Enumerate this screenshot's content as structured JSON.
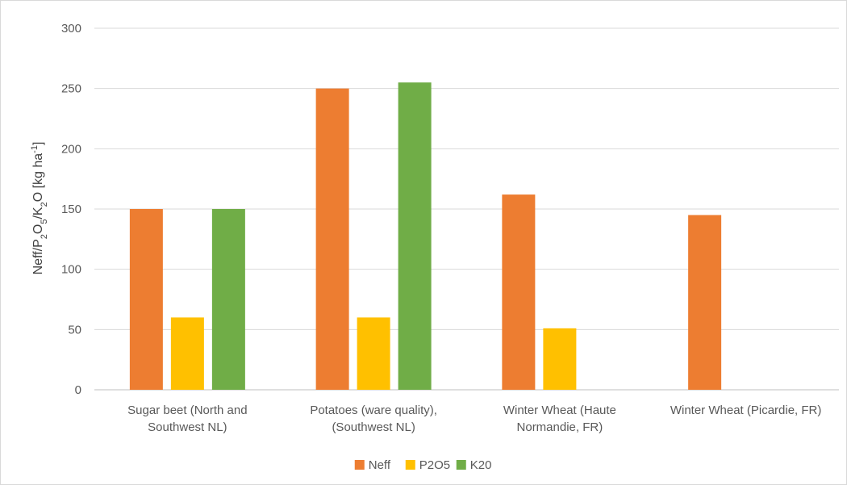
{
  "chart_data": {
    "type": "bar",
    "ylabel": {
      "parts": [
        {
          "text": "Neff/P",
          "shift": "normal"
        },
        {
          "text": "2",
          "shift": "sub"
        },
        {
          "text": "O",
          "shift": "normal"
        },
        {
          "text": "5",
          "shift": "sub"
        },
        {
          "text": "/K",
          "shift": "normal"
        },
        {
          "text": "2",
          "shift": "sub"
        },
        {
          "text": "O [kg ha",
          "shift": "normal"
        },
        {
          "text": "-1",
          "shift": "super"
        },
        {
          "text": "]",
          "shift": "normal"
        }
      ]
    },
    "ylim": [
      0,
      300
    ],
    "yticks": [
      0,
      50,
      100,
      150,
      200,
      250,
      300
    ],
    "grid": true,
    "legend_position": "bottom",
    "categories": [
      [
        "Sugar beet (North and",
        "Southwest NL)"
      ],
      [
        "Potatoes (ware quality),",
        "(Southwest NL)"
      ],
      [
        "Winter Wheat (Haute",
        "Normandie, FR)"
      ],
      [
        "Winter Wheat (Picardie, FR)"
      ]
    ],
    "series": [
      {
        "name": "Neff",
        "color": "#ED7D31",
        "values": [
          150,
          250,
          162,
          145
        ]
      },
      {
        "name": "P2O5",
        "color": "#FFC000",
        "values": [
          60,
          60,
          51,
          null
        ]
      },
      {
        "name": "K20",
        "color": "#70AD47",
        "values": [
          150,
          255,
          null,
          null
        ]
      }
    ]
  }
}
